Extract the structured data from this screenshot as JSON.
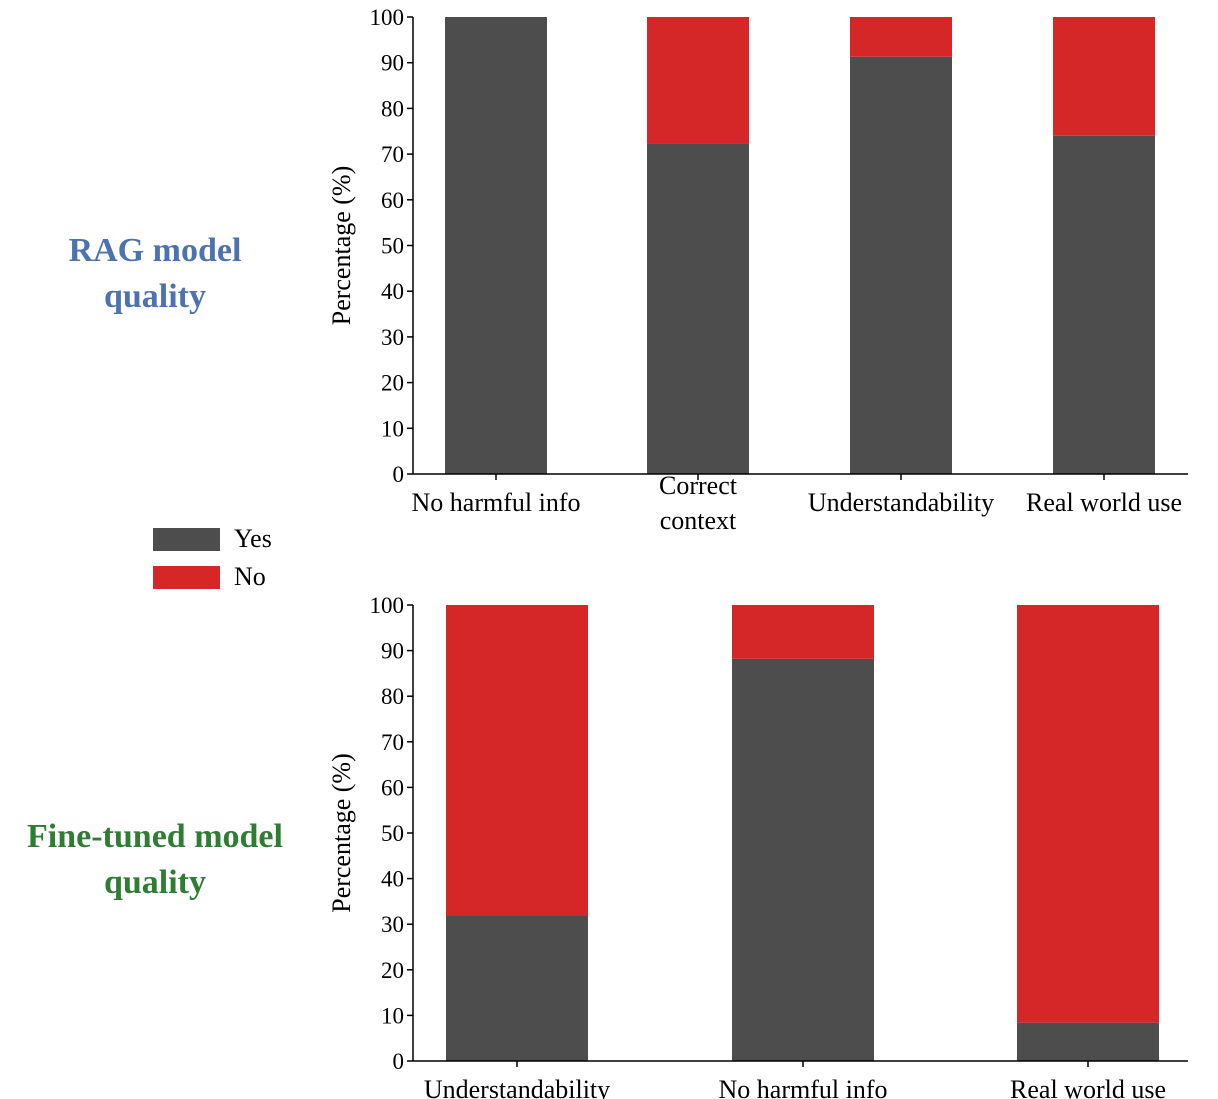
{
  "legend": [
    {
      "label": "Yes",
      "color": "#4d4d4d"
    },
    {
      "label": "No",
      "color": "#d62728"
    }
  ],
  "panels": [
    {
      "title_line1": "RAG model",
      "title_line2": "quality",
      "title_color": "#4c72b0"
    },
    {
      "title_line1": "Fine-tuned model",
      "title_line2": "quality",
      "title_color": "#2e7d32"
    }
  ],
  "chart_data": [
    {
      "type": "bar",
      "stacked": true,
      "categories": [
        [
          "No harmful info"
        ],
        [
          "Correct",
          "context"
        ],
        [
          "Understandability"
        ],
        [
          "Real world use"
        ]
      ],
      "series": [
        {
          "name": "Yes",
          "color": "#4d4d4d",
          "values": [
            100,
            72.4,
            91.3,
            74.0
          ]
        },
        {
          "name": "No",
          "color": "#d62728",
          "values": [
            0,
            27.6,
            8.7,
            26.0
          ]
        }
      ],
      "ylabel": "Percentage (%)",
      "ylim": [
        0,
        100
      ],
      "yticks": [
        0,
        10,
        20,
        30,
        40,
        50,
        60,
        70,
        80,
        90,
        100
      ],
      "grid": false
    },
    {
      "type": "bar",
      "stacked": true,
      "categories": [
        [
          "Understandability"
        ],
        [
          "No harmful info"
        ],
        [
          "Real world use"
        ]
      ],
      "series": [
        {
          "name": "Yes",
          "color": "#4d4d4d",
          "values": [
            31.8,
            88.2,
            8.4
          ]
        },
        {
          "name": "No",
          "color": "#d62728",
          "values": [
            68.2,
            11.8,
            91.6
          ]
        }
      ],
      "ylabel": "Percentage (%)",
      "ylim": [
        0,
        100
      ],
      "yticks": [
        0,
        10,
        20,
        30,
        40,
        50,
        60,
        70,
        80,
        90,
        100
      ],
      "grid": false
    }
  ]
}
